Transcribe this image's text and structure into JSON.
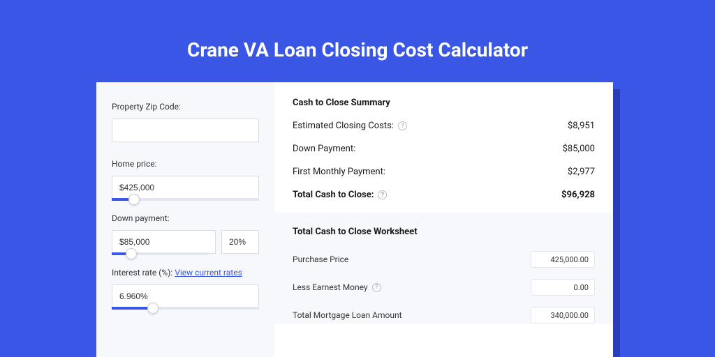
{
  "page": {
    "title": "Crane VA Loan Closing Cost Calculator",
    "bg_color": "#3956e5",
    "card_bg": "#ffffff",
    "panel_bg": "#f7f8fc",
    "shadow_color": "#2a3db8"
  },
  "form": {
    "zip": {
      "label": "Property Zip Code:",
      "value": ""
    },
    "home_price": {
      "label": "Home price:",
      "value": "$425,000",
      "slider_pct": 15
    },
    "down_payment": {
      "label": "Down payment:",
      "value": "$85,000",
      "pct_value": "20%",
      "slider_pct": 20
    },
    "interest": {
      "label": "Interest rate (%):",
      "link_text": "View current rates",
      "value": "6.960%",
      "slider_pct": 28
    }
  },
  "summary": {
    "title": "Cash to Close Summary",
    "rows": [
      {
        "label": "Estimated Closing Costs:",
        "help": true,
        "value": "$8,951",
        "bold": false
      },
      {
        "label": "Down Payment:",
        "help": false,
        "value": "$85,000",
        "bold": false
      },
      {
        "label": "First Monthly Payment:",
        "help": false,
        "value": "$2,977",
        "bold": false
      },
      {
        "label": "Total Cash to Close:",
        "help": true,
        "value": "$96,928",
        "bold": true
      }
    ]
  },
  "worksheet": {
    "title": "Total Cash to Close Worksheet",
    "rows": [
      {
        "label": "Purchase Price",
        "help": false,
        "value": "425,000.00"
      },
      {
        "label": "Less Earnest Money",
        "help": true,
        "value": "0.00"
      },
      {
        "label": "Total Mortgage Loan Amount",
        "help": false,
        "value": "340,000.00"
      }
    ]
  }
}
